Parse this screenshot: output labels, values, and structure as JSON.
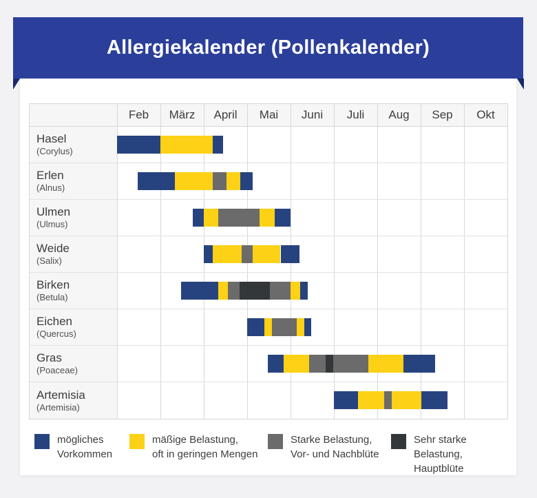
{
  "title": "Allergiekalender (Pollenkalender)",
  "colors": {
    "banner": "#2b3f9a",
    "banner_fold": "#18286b",
    "card": "#ffffff",
    "page_background": "#f2f2f4"
  },
  "chart_data": {
    "type": "gantt",
    "title": "Allergiekalender (Pollenkalender)",
    "months": [
      "Feb",
      "März",
      "April",
      "Mai",
      "Juni",
      "Juli",
      "Aug",
      "Sep",
      "Okt"
    ],
    "levels": {
      "possible": {
        "label": "mögliches\nVorkommen",
        "color": "#27437f"
      },
      "moderate": {
        "label": "mäßige Belastung,\noft in geringen Mengen",
        "color": "#fcd116"
      },
      "strong": {
        "label": "Starke Belastung,\nVor- und Nachblüte",
        "color": "#6b6b6b"
      },
      "very_strong": {
        "label": "Sehr starke Belastung,\nHauptblüte",
        "color": "#34373a"
      }
    },
    "legend_order": [
      "possible",
      "moderate",
      "strong",
      "very_strong"
    ],
    "unit": "months from start of Feb",
    "rows": [
      {
        "name": "Hasel",
        "latin": "(Corylus)",
        "segments": [
          {
            "level": "possible",
            "start": 0.0,
            "end": 1.0
          },
          {
            "level": "moderate",
            "start": 1.0,
            "end": 2.2
          },
          {
            "level": "possible",
            "start": 2.2,
            "end": 2.45
          }
        ]
      },
      {
        "name": "Erlen",
        "latin": "(Alnus)",
        "segments": [
          {
            "level": "possible",
            "start": 0.48,
            "end": 1.33
          },
          {
            "level": "moderate",
            "start": 1.33,
            "end": 2.2
          },
          {
            "level": "strong",
            "start": 2.2,
            "end": 2.52
          },
          {
            "level": "moderate",
            "start": 2.52,
            "end": 2.84
          },
          {
            "level": "possible",
            "start": 2.84,
            "end": 3.12
          }
        ]
      },
      {
        "name": "Ulmen",
        "latin": "(Ulmus)",
        "segments": [
          {
            "level": "possible",
            "start": 1.75,
            "end": 2.0
          },
          {
            "level": "moderate",
            "start": 2.0,
            "end": 2.33
          },
          {
            "level": "strong",
            "start": 2.33,
            "end": 3.28
          },
          {
            "level": "moderate",
            "start": 3.28,
            "end": 3.64
          },
          {
            "level": "possible",
            "start": 3.64,
            "end": 4.0
          }
        ]
      },
      {
        "name": "Weide",
        "latin": "(Salix)",
        "segments": [
          {
            "level": "possible",
            "start": 2.0,
            "end": 2.2
          },
          {
            "level": "moderate",
            "start": 2.2,
            "end": 2.88
          },
          {
            "level": "strong",
            "start": 2.88,
            "end": 3.12
          },
          {
            "level": "moderate",
            "start": 3.12,
            "end": 3.77
          },
          {
            "level": "possible",
            "start": 3.77,
            "end": 4.2
          }
        ]
      },
      {
        "name": "Birken",
        "latin": "(Betula)",
        "segments": [
          {
            "level": "possible",
            "start": 1.48,
            "end": 2.34
          },
          {
            "level": "moderate",
            "start": 2.34,
            "end": 2.55
          },
          {
            "level": "strong",
            "start": 2.55,
            "end": 2.83
          },
          {
            "level": "very_strong",
            "start": 2.83,
            "end": 3.53
          },
          {
            "level": "strong",
            "start": 3.53,
            "end": 4.0
          },
          {
            "level": "moderate",
            "start": 4.0,
            "end": 4.23
          },
          {
            "level": "possible",
            "start": 4.23,
            "end": 4.4
          }
        ]
      },
      {
        "name": "Eichen",
        "latin": "(Quercus)",
        "segments": [
          {
            "level": "possible",
            "start": 3.0,
            "end": 3.39
          },
          {
            "level": "moderate",
            "start": 3.39,
            "end": 3.57
          },
          {
            "level": "strong",
            "start": 3.57,
            "end": 4.14
          },
          {
            "level": "moderate",
            "start": 4.14,
            "end": 4.31
          },
          {
            "level": "possible",
            "start": 4.31,
            "end": 4.47
          }
        ]
      },
      {
        "name": "Gras",
        "latin": "(Poaceae)",
        "segments": [
          {
            "level": "possible",
            "start": 3.48,
            "end": 3.84
          },
          {
            "level": "moderate",
            "start": 3.84,
            "end": 4.43
          },
          {
            "level": "strong",
            "start": 4.43,
            "end": 4.81
          },
          {
            "level": "very_strong",
            "start": 4.81,
            "end": 4.98
          },
          {
            "level": "strong",
            "start": 4.98,
            "end": 5.8
          },
          {
            "level": "moderate",
            "start": 5.8,
            "end": 6.6
          },
          {
            "level": "possible",
            "start": 6.6,
            "end": 7.33
          }
        ]
      },
      {
        "name": "Artemisia",
        "latin": "(Artemisia)",
        "segments": [
          {
            "level": "possible",
            "start": 5.0,
            "end": 5.55
          },
          {
            "level": "moderate",
            "start": 5.55,
            "end": 6.16
          },
          {
            "level": "strong",
            "start": 6.16,
            "end": 6.33
          },
          {
            "level": "moderate",
            "start": 6.33,
            "end": 7.02
          },
          {
            "level": "possible",
            "start": 7.02,
            "end": 7.62
          }
        ]
      }
    ]
  }
}
